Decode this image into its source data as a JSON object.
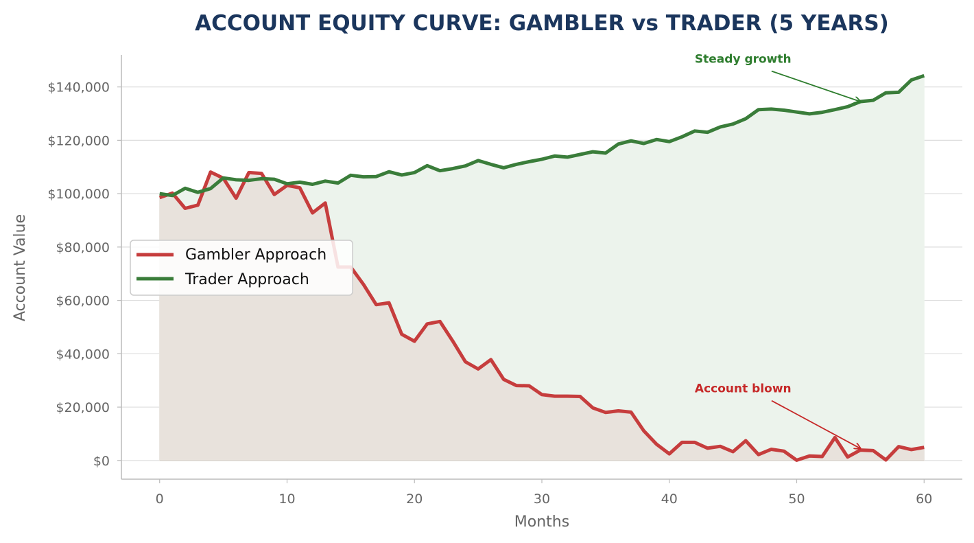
{
  "chart_data": {
    "type": "line",
    "title": "ACCOUNT EQUITY CURVE: GAMBLER vs TRADER (5 YEARS)",
    "xlabel": "Months",
    "ylabel": "Account Value",
    "xlim": [
      -3,
      63
    ],
    "ylim": [
      -7000,
      152000
    ],
    "x_ticks": [
      0,
      10,
      20,
      30,
      40,
      50,
      60
    ],
    "x_tick_labels": [
      "0",
      "10",
      "20",
      "30",
      "40",
      "50",
      "60"
    ],
    "y_ticks": [
      0,
      20000,
      40000,
      60000,
      80000,
      100000,
      120000,
      140000
    ],
    "y_tick_labels": [
      "$0",
      "$20,000",
      "$40,000",
      "$60,000",
      "$80,000",
      "$100,000",
      "$120,000",
      "$140,000"
    ],
    "grid": "horizontal",
    "legend_position": "center-left",
    "x": [
      0,
      1,
      2,
      3,
      4,
      5,
      6,
      7,
      8,
      9,
      10,
      11,
      12,
      13,
      14,
      15,
      16,
      17,
      18,
      19,
      20,
      21,
      22,
      23,
      24,
      25,
      26,
      27,
      28,
      29,
      30,
      31,
      32,
      33,
      34,
      35,
      36,
      37,
      38,
      39,
      40,
      41,
      42,
      43,
      44,
      45,
      46,
      47,
      48,
      49,
      50,
      51,
      52,
      53,
      54,
      55,
      56,
      57,
      58,
      59,
      60
    ],
    "series": [
      {
        "name": "Gambler Approach",
        "color": "#c63d3d",
        "fill": "#e8e2dc",
        "values": [
          98500,
          100200,
          94500,
          95700,
          108100,
          105800,
          98300,
          107900,
          107600,
          99700,
          103100,
          102200,
          92800,
          96500,
          72500,
          72500,
          66000,
          58400,
          59100,
          47300,
          44700,
          51200,
          52100,
          44800,
          37000,
          34300,
          37800,
          30400,
          28100,
          28000,
          24700,
          24100,
          24100,
          24000,
          19700,
          18000,
          18600,
          18100,
          11100,
          6100,
          2500,
          6800,
          6800,
          4600,
          5300,
          3300,
          7400,
          2200,
          4200,
          3500,
          100,
          1700,
          1500,
          8600,
          1300,
          3900,
          3700,
          200,
          5200,
          4100,
          4900
        ]
      },
      {
        "name": "Trader Approach",
        "color": "#3a7d3a",
        "fill": "#ecf3ec",
        "values": [
          100000,
          99300,
          102000,
          100500,
          101900,
          105900,
          105200,
          105000,
          105600,
          105400,
          103700,
          104300,
          103500,
          104700,
          104000,
          106900,
          106300,
          106400,
          108200,
          107000,
          107900,
          110500,
          108600,
          109400,
          110400,
          112400,
          111000,
          109700,
          111000,
          112000,
          112900,
          114100,
          113700,
          114700,
          115700,
          115200,
          118600,
          119800,
          118800,
          120300,
          119500,
          121300,
          123500,
          123000,
          125000,
          126100,
          128100,
          131500,
          131700,
          131300,
          130600,
          129900,
          130500,
          131500,
          132600,
          134500,
          135000,
          137800,
          138000,
          142600,
          144200
        ]
      }
    ],
    "annotations": [
      {
        "text": "Steady growth",
        "color": "#2e7d2e",
        "x": 55,
        "y": 134500,
        "text_x": 42,
        "text_y": 149000
      },
      {
        "text": "Account blown",
        "color": "#c62828",
        "x": 55,
        "y": 4500,
        "text_x": 42,
        "text_y": 25500
      }
    ],
    "title_color": "#1b365d"
  }
}
